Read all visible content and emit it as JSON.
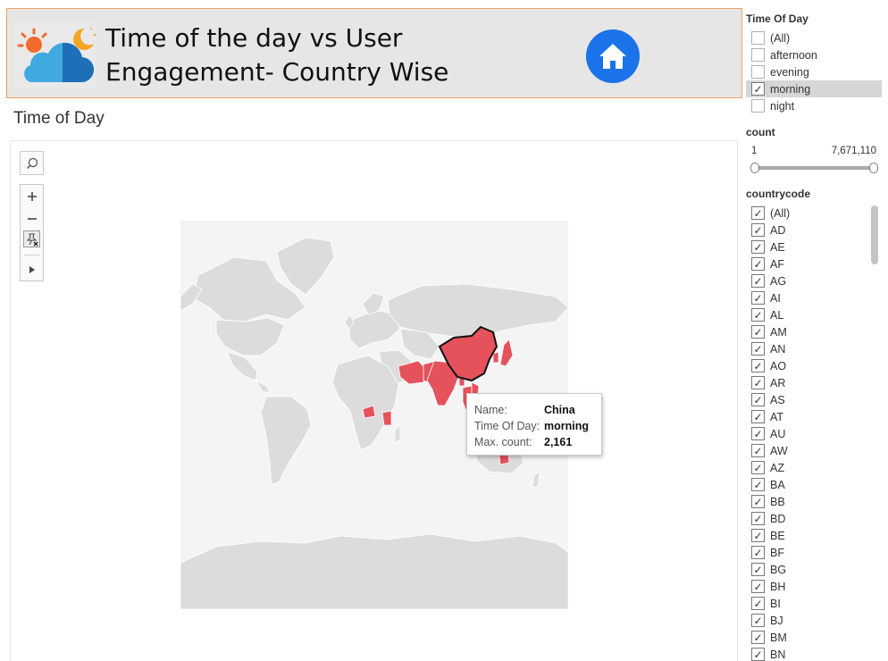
{
  "header": {
    "title": "Time of the day vs User Engagement- Country Wise",
    "logo_icon": "weather-day-night-icon",
    "home_icon": "home-icon",
    "home_color": "#1a73e8"
  },
  "section_title": "Time of Day",
  "map": {
    "highlight_color": "#e5525c",
    "base_color": "#dcdcdc",
    "tooltip": {
      "name_label": "Name:",
      "name_value": "China",
      "time_label": "Time Of Day:",
      "time_value": "morning",
      "count_label": "Max. count:",
      "count_value": "2,161"
    }
  },
  "filters": {
    "time_of_day": {
      "title": "Time Of Day",
      "options": [
        {
          "label": "(All)",
          "checked": false
        },
        {
          "label": "afternoon",
          "checked": false
        },
        {
          "label": "evening",
          "checked": false
        },
        {
          "label": "morning",
          "checked": true
        },
        {
          "label": "night",
          "checked": false
        }
      ]
    },
    "count": {
      "title": "count",
      "min": "1",
      "max": "7,671,110",
      "range": [
        0,
        1
      ]
    },
    "countrycode": {
      "title": "countrycode",
      "options": [
        "(All)",
        "AD",
        "AE",
        "AF",
        "AG",
        "AI",
        "AL",
        "AM",
        "AN",
        "AO",
        "AR",
        "AS",
        "AT",
        "AU",
        "AW",
        "AZ",
        "BA",
        "BB",
        "BD",
        "BE",
        "BF",
        "BG",
        "BH",
        "BI",
        "BJ",
        "BM",
        "BN"
      ]
    }
  }
}
